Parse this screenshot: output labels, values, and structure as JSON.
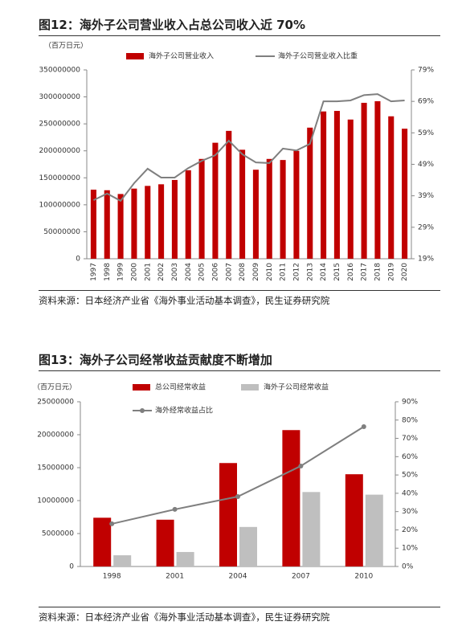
{
  "chart_data": [
    {
      "type": "combo",
      "title": "图12：海外子公司营业收入占总公司收入近 70%",
      "unit": "（百万日元）",
      "categories": [
        "1997",
        "1998",
        "1999",
        "2000",
        "2001",
        "2002",
        "2003",
        "2004",
        "2005",
        "2006",
        "2007",
        "2008",
        "2009",
        "2010",
        "2011",
        "2012",
        "2013",
        "2014",
        "2015",
        "2016",
        "2017",
        "2018",
        "2019",
        "2020"
      ],
      "series": [
        {
          "name": "海外子公司营业收入",
          "type": "bar",
          "color": "#c00000",
          "values": [
            128000000,
            127000000,
            120000000,
            130000000,
            135000000,
            138000000,
            146000000,
            164000000,
            185000000,
            215000000,
            237000000,
            202000000,
            165000000,
            185000000,
            183000000,
            200000000,
            243000000,
            273000000,
            274000000,
            258000000,
            289000000,
            292000000,
            264000000,
            241000000
          ]
        },
        {
          "name": "海外子公司营业收入比重",
          "type": "line",
          "axis": "y2",
          "color": "#7f7f7f",
          "values": [
            37.6,
            39.7,
            37.4,
            43.0,
            47.6,
            44.8,
            44.8,
            47.8,
            50.1,
            51.9,
            56.5,
            52.2,
            49.6,
            49.4,
            54.0,
            53.4,
            55.5,
            69.0,
            69.0,
            69.3,
            71.0,
            71.3,
            69.0,
            69.3
          ]
        }
      ],
      "ylim": [
        0,
        350000000
      ],
      "yticks": [
        0,
        50000000,
        100000000,
        150000000,
        200000000,
        250000000,
        300000000,
        350000000
      ],
      "y2lim": [
        19,
        79
      ],
      "y2ticks": [
        {
          "value": 19,
          "label": "19%"
        },
        {
          "value": 29,
          "label": "29%"
        },
        {
          "value": 39,
          "label": "39%"
        },
        {
          "value": 49,
          "label": "49%"
        },
        {
          "value": 59,
          "label": "59%"
        },
        {
          "value": 69,
          "label": "69%"
        },
        {
          "value": 79,
          "label": "79%"
        }
      ],
      "source": "资料来源：日本经济产业省《海外事业活动基本调查》，民生证券研究院"
    },
    {
      "type": "combo",
      "title": "图13：海外子公司经常收益贡献度不断增加",
      "unit": "（百万日元）",
      "categories": [
        "1998",
        "2001",
        "2004",
        "2007",
        "2010"
      ],
      "series": [
        {
          "name": "总公司经常收益",
          "type": "bar",
          "color": "#c00000",
          "values": [
            7400000,
            7100000,
            15700000,
            20700000,
            14000000
          ]
        },
        {
          "name": "海外子公司经常收益",
          "type": "bar",
          "color": "#bfbfbf",
          "values": [
            1700000,
            2200000,
            6000000,
            11300000,
            10900000
          ]
        },
        {
          "name": "海外经常收益占比",
          "type": "line",
          "axis": "y2",
          "color": "#7f7f7f",
          "marker": true,
          "values": [
            23.3,
            31.2,
            38.2,
            54.9,
            76.4
          ]
        }
      ],
      "ylim": [
        0,
        25000000
      ],
      "yticks": [
        0,
        5000000,
        10000000,
        15000000,
        20000000,
        25000000
      ],
      "y2lim": [
        0,
        90
      ],
      "y2ticks": [
        {
          "value": 0,
          "label": "0%"
        },
        {
          "value": 10,
          "label": "10%"
        },
        {
          "value": 20,
          "label": "20%"
        },
        {
          "value": 30,
          "label": "30%"
        },
        {
          "value": 40,
          "label": "40%"
        },
        {
          "value": 50,
          "label": "50%"
        },
        {
          "value": 60,
          "label": "60%"
        },
        {
          "value": 70,
          "label": "70%"
        },
        {
          "value": 80,
          "label": "80%"
        },
        {
          "value": 90,
          "label": "90%"
        }
      ],
      "source": "资料来源：日本经济产业省《海外事业活动基本调查》，民生证券研究院"
    }
  ]
}
